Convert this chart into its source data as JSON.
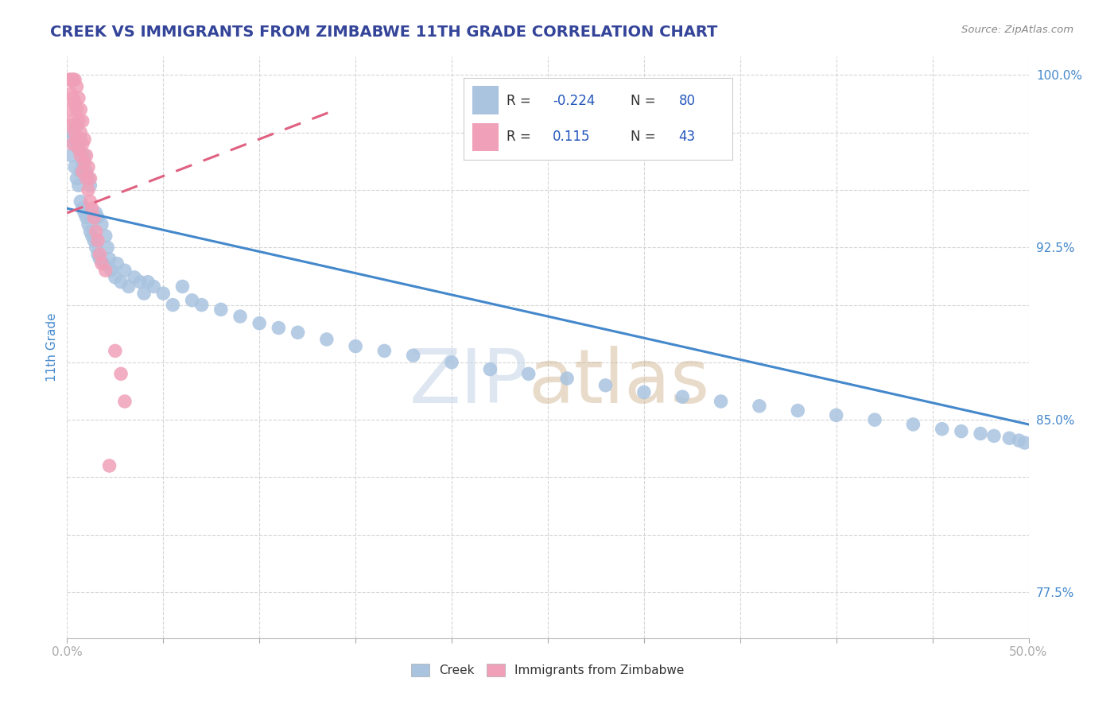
{
  "title": "CREEK VS IMMIGRANTS FROM ZIMBABWE 11TH GRADE CORRELATION CHART",
  "source_text": "Source: ZipAtlas.com",
  "ylabel": "11th Grade",
  "xlim": [
    0.0,
    0.5
  ],
  "ylim": [
    0.755,
    1.008
  ],
  "ytick_positions": [
    0.775,
    0.8,
    0.825,
    0.85,
    0.875,
    0.9,
    0.925,
    0.95,
    0.975,
    1.0
  ],
  "ytick_labels": [
    "77.5%",
    "",
    "",
    "85.0%",
    "",
    "",
    "92.5%",
    "",
    "",
    "100.0%"
  ],
  "xtick_positions": [
    0.0,
    0.05,
    0.1,
    0.15,
    0.2,
    0.25,
    0.3,
    0.35,
    0.4,
    0.45,
    0.5
  ],
  "xtick_labels": [
    "0.0%",
    "",
    "",
    "",
    "",
    "",
    "",
    "",
    "",
    "",
    "50.0%"
  ],
  "grid_color": "#cccccc",
  "background_color": "#ffffff",
  "creek_color": "#aac4e0",
  "zimbabwe_color": "#f0a0b8",
  "creek_line_color": "#4488cc",
  "zimbabwe_line_color": "#e06080",
  "creek_R": -0.224,
  "creek_N": 80,
  "zimbabwe_R": 0.115,
  "zimbabwe_N": 43,
  "title_color": "#334499",
  "axis_label_color": "#4488cc",
  "legend_R_color": "#2255bb",
  "legend_N_color": "#2255bb",
  "creek_scatter_x": [
    0.001,
    0.002,
    0.003,
    0.003,
    0.004,
    0.004,
    0.005,
    0.005,
    0.006,
    0.006,
    0.007,
    0.007,
    0.007,
    0.008,
    0.008,
    0.009,
    0.009,
    0.01,
    0.01,
    0.011,
    0.011,
    0.012,
    0.012,
    0.013,
    0.014,
    0.015,
    0.015,
    0.016,
    0.016,
    0.017,
    0.018,
    0.019,
    0.02,
    0.021,
    0.022,
    0.023,
    0.025,
    0.026,
    0.028,
    0.03,
    0.032,
    0.035,
    0.038,
    0.04,
    0.042,
    0.045,
    0.05,
    0.055,
    0.06,
    0.065,
    0.07,
    0.08,
    0.09,
    0.1,
    0.11,
    0.12,
    0.135,
    0.15,
    0.165,
    0.18,
    0.2,
    0.22,
    0.24,
    0.26,
    0.28,
    0.3,
    0.32,
    0.34,
    0.36,
    0.38,
    0.4,
    0.42,
    0.44,
    0.455,
    0.465,
    0.475,
    0.482,
    0.49,
    0.495,
    0.498
  ],
  "creek_scatter_y": [
    0.972,
    0.965,
    0.975,
    0.998,
    0.96,
    0.97,
    0.955,
    0.978,
    0.952,
    0.968,
    0.945,
    0.958,
    0.972,
    0.942,
    0.962,
    0.94,
    0.965,
    0.938,
    0.958,
    0.935,
    0.955,
    0.932,
    0.952,
    0.93,
    0.928,
    0.925,
    0.94,
    0.922,
    0.938,
    0.92,
    0.935,
    0.918,
    0.93,
    0.925,
    0.92,
    0.915,
    0.912,
    0.918,
    0.91,
    0.915,
    0.908,
    0.912,
    0.91,
    0.905,
    0.91,
    0.908,
    0.905,
    0.9,
    0.908,
    0.902,
    0.9,
    0.898,
    0.895,
    0.892,
    0.89,
    0.888,
    0.885,
    0.882,
    0.88,
    0.878,
    0.875,
    0.872,
    0.87,
    0.868,
    0.865,
    0.862,
    0.86,
    0.858,
    0.856,
    0.854,
    0.852,
    0.85,
    0.848,
    0.846,
    0.845,
    0.844,
    0.843,
    0.842,
    0.841,
    0.84
  ],
  "zimbabwe_scatter_x": [
    0.001,
    0.001,
    0.002,
    0.002,
    0.002,
    0.003,
    0.003,
    0.003,
    0.003,
    0.004,
    0.004,
    0.004,
    0.005,
    0.005,
    0.005,
    0.006,
    0.006,
    0.006,
    0.007,
    0.007,
    0.007,
    0.008,
    0.008,
    0.008,
    0.009,
    0.009,
    0.01,
    0.01,
    0.011,
    0.011,
    0.012,
    0.012,
    0.013,
    0.014,
    0.015,
    0.016,
    0.017,
    0.018,
    0.02,
    0.022,
    0.025,
    0.028,
    0.03
  ],
  "zimbabwe_scatter_y": [
    0.998,
    0.985,
    0.998,
    0.992,
    0.978,
    0.998,
    0.99,
    0.98,
    0.97,
    0.998,
    0.988,
    0.975,
    0.995,
    0.985,
    0.972,
    0.99,
    0.98,
    0.968,
    0.985,
    0.975,
    0.965,
    0.98,
    0.97,
    0.958,
    0.972,
    0.962,
    0.965,
    0.955,
    0.96,
    0.95,
    0.955,
    0.945,
    0.942,
    0.938,
    0.932,
    0.928,
    0.922,
    0.918,
    0.915,
    0.83,
    0.88,
    0.87,
    0.858
  ],
  "creek_trendline_x": [
    0.0,
    0.5
  ],
  "creek_trendline_y": [
    0.942,
    0.848
  ],
  "zimbabwe_trendline_x": [
    0.0,
    0.14
  ],
  "zimbabwe_trendline_y": [
    0.94,
    0.985
  ]
}
